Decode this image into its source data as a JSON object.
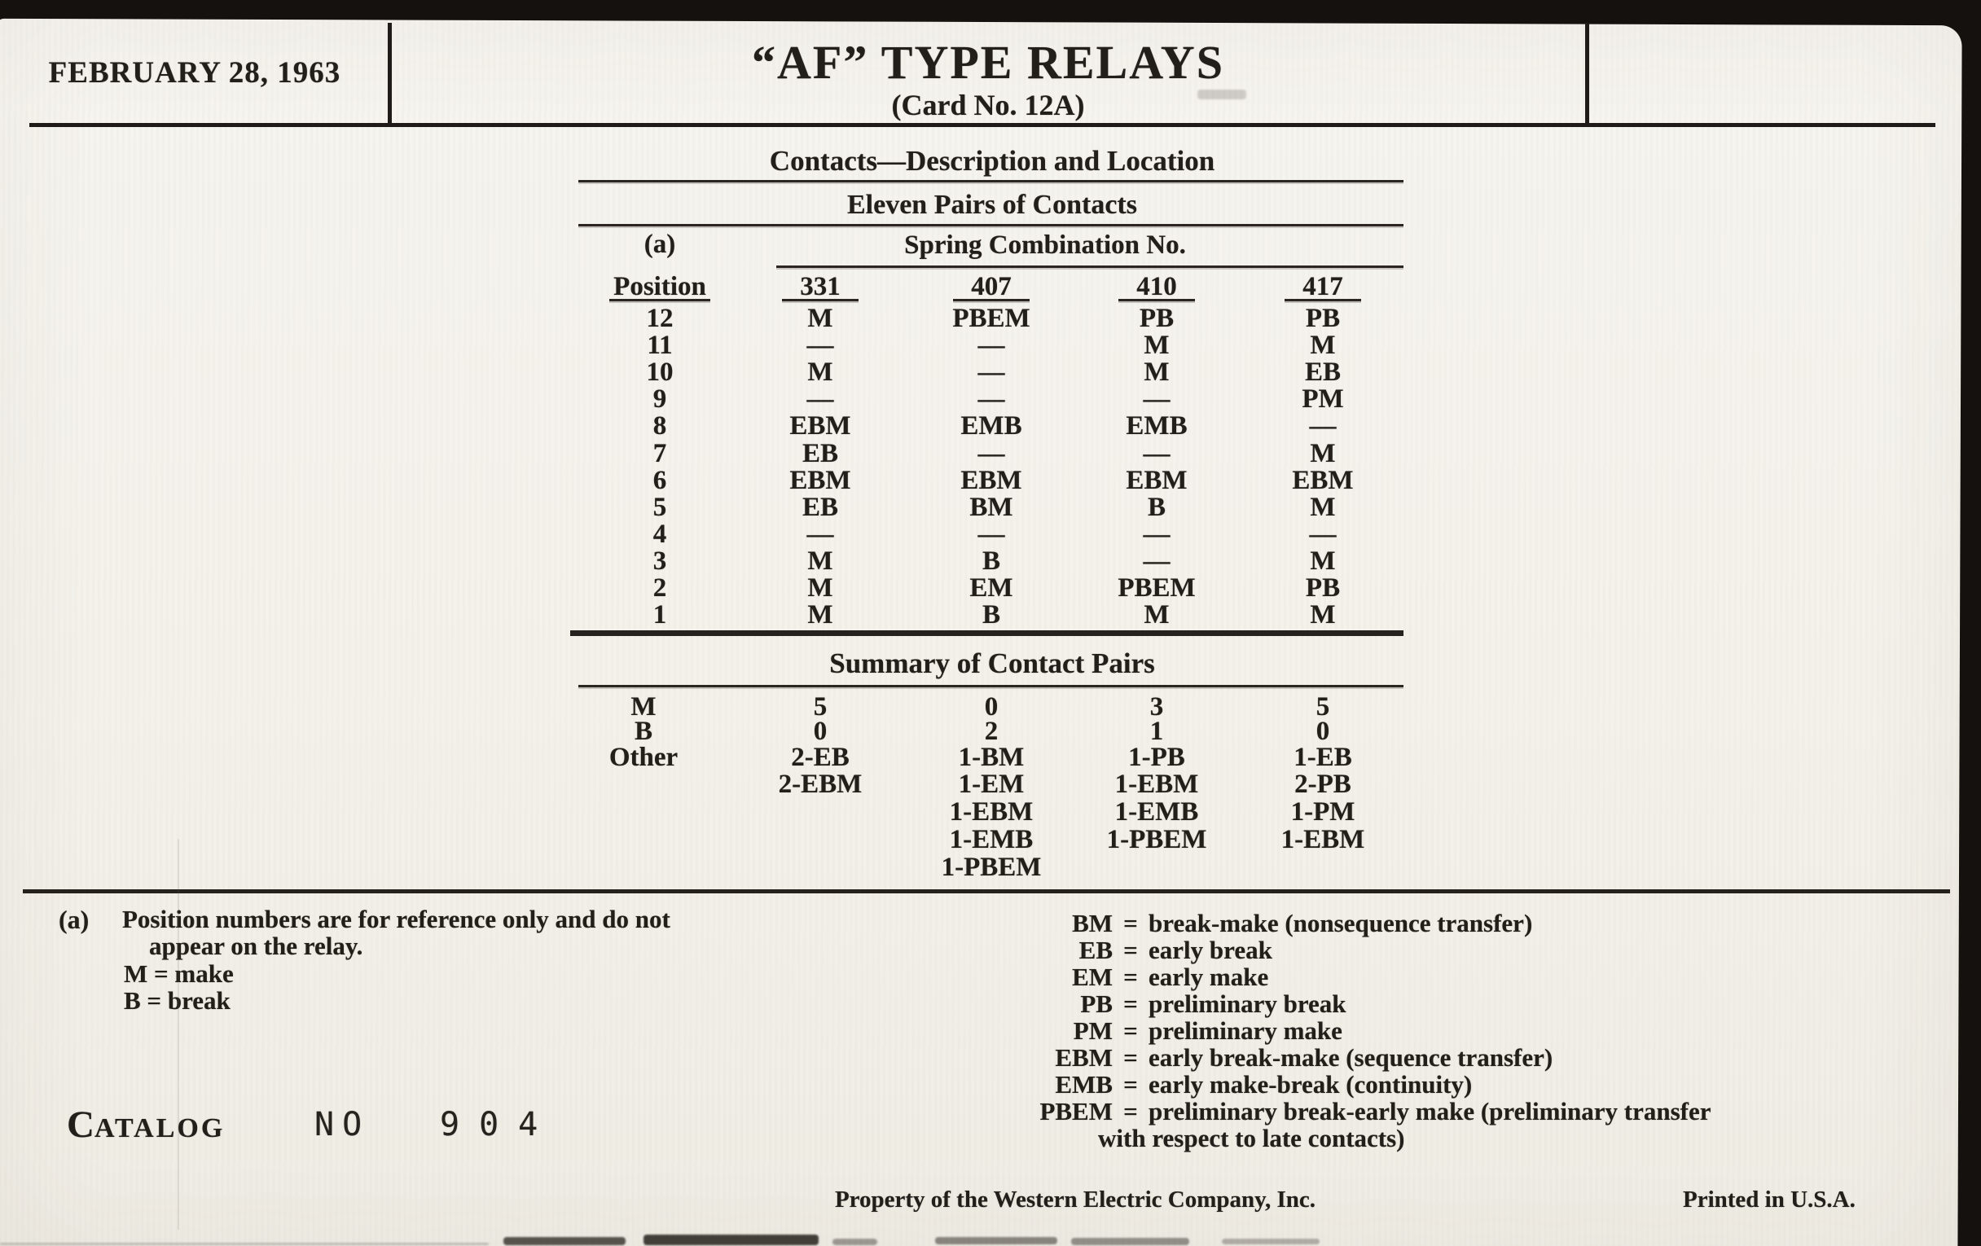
{
  "header": {
    "date": "FEBRUARY 28, 1963",
    "title": "“AF” TYPE RELAYS",
    "subtitle": "(Card No. 12A)"
  },
  "table": {
    "section_title": "Contacts—Description and Location",
    "subsection_title": "Eleven Pairs of Contacts",
    "footnote_marker": "(a)",
    "position_header": "Position",
    "spring_header": "Spring Combination No.",
    "spring_columns": [
      "331",
      "407",
      "410",
      "417"
    ],
    "rows": [
      {
        "position": "12",
        "values": [
          "M",
          "PBEM",
          "PB",
          "PB"
        ]
      },
      {
        "position": "11",
        "values": [
          "—",
          "—",
          "M",
          "M"
        ]
      },
      {
        "position": "10",
        "values": [
          "M",
          "—",
          "M",
          "EB"
        ]
      },
      {
        "position": "9",
        "values": [
          "—",
          "—",
          "—",
          "PM"
        ]
      },
      {
        "position": "8",
        "values": [
          "EBM",
          "EMB",
          "EMB",
          "—"
        ]
      },
      {
        "position": "7",
        "values": [
          "EB",
          "—",
          "—",
          "M"
        ]
      },
      {
        "position": "6",
        "values": [
          "EBM",
          "EBM",
          "EBM",
          "EBM"
        ]
      },
      {
        "position": "5",
        "values": [
          "EB",
          "BM",
          "B",
          "M"
        ]
      },
      {
        "position": "4",
        "values": [
          "—",
          "—",
          "—",
          "—"
        ]
      },
      {
        "position": "3",
        "values": [
          "M",
          "B",
          "—",
          "M"
        ]
      },
      {
        "position": "2",
        "values": [
          "M",
          "EM",
          "PBEM",
          "PB"
        ]
      },
      {
        "position": "1",
        "values": [
          "M",
          "B",
          "M",
          "M"
        ]
      }
    ],
    "summary_title": "Summary of Contact Pairs",
    "summary_rows": [
      {
        "label": "M",
        "values": [
          "5",
          "0",
          "3",
          "5"
        ]
      },
      {
        "label": "B",
        "values": [
          "0",
          "2",
          "1",
          "0"
        ]
      },
      {
        "label": "Other",
        "values": [
          "2-EB",
          "1-BM",
          "1-PB",
          "1-EB"
        ]
      },
      {
        "label": "",
        "values": [
          "2-EBM",
          "1-EM",
          "1-EBM",
          "2-PB"
        ]
      },
      {
        "label": "",
        "values": [
          "",
          "1-EBM",
          "1-EMB",
          "1-PM"
        ]
      },
      {
        "label": "",
        "values": [
          "",
          "1-EMB",
          "1-PBEM",
          "1-EBM"
        ]
      },
      {
        "label": "",
        "values": [
          "",
          "1-PBEM",
          "",
          ""
        ]
      }
    ]
  },
  "footnotes": {
    "left": {
      "marker": "(a)",
      "line1": "Position numbers are for reference only and do not",
      "line2": "appear on the relay.",
      "m_def": "M = make",
      "b_def": "B = break"
    },
    "definitions": [
      {
        "abbr": "BM",
        "text": "break-make (nonsequence transfer)"
      },
      {
        "abbr": "EB",
        "text": "early break"
      },
      {
        "abbr": "EM",
        "text": "early make"
      },
      {
        "abbr": "PB",
        "text": "preliminary break"
      },
      {
        "abbr": "PM",
        "text": "preliminary make"
      },
      {
        "abbr": "EBM",
        "text": "early break-make (sequence transfer)"
      },
      {
        "abbr": "EMB",
        "text": "early make-break (continuity)"
      },
      {
        "abbr": "PBEM",
        "text": "preliminary break-early make (preliminary transfer"
      }
    ],
    "pbem_continuation": "with respect to late contacts)",
    "equals_sign": "="
  },
  "footer": {
    "catalog_c": "C",
    "catalog_rest": "ATALOG",
    "number_label": "NO",
    "number": "904",
    "property": "Property of the Western Electric Company, Inc.",
    "printed": "Printed in U.S.A."
  },
  "colors": {
    "paper": "#f4f2ec",
    "ink": "#221e1a",
    "edge_black": "#14110e"
  }
}
